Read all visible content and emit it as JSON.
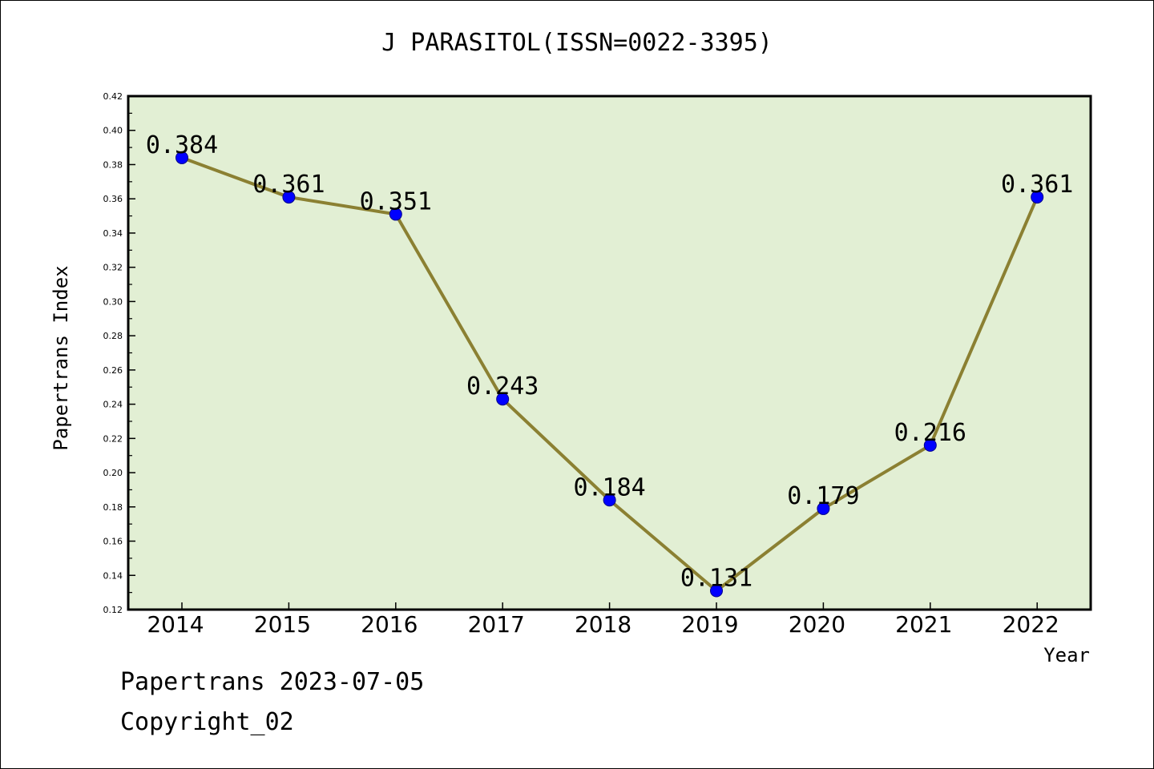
{
  "chart_data": {
    "type": "line",
    "title": "J PARASITOL(ISSN=0022-3395)",
    "xlabel": "Year",
    "ylabel": "Papertrans Index",
    "categories": [
      "2014",
      "2015",
      "2016",
      "2017",
      "2018",
      "2019",
      "2020",
      "2021",
      "2022"
    ],
    "series": [
      {
        "values": [
          0.384,
          0.361,
          0.351,
          0.243,
          0.184,
          0.131,
          0.179,
          0.216,
          0.361
        ]
      }
    ],
    "data_labels": [
      "0.384",
      "0.361",
      "0.351",
      "0.243",
      "0.184",
      "0.131",
      "0.179",
      "0.216",
      "0.361"
    ],
    "ylim": [
      0.12,
      0.42
    ],
    "yticks": [
      "0.12",
      "0.14",
      "0.16",
      "0.18",
      "0.20",
      "0.22",
      "0.24",
      "0.26",
      "0.28",
      "0.30",
      "0.32",
      "0.34",
      "0.36",
      "0.38",
      "0.40",
      "0.42"
    ],
    "grid": false,
    "legend": "none",
    "colors": {
      "plot_background": "#e2efd4",
      "line": "#8b8032",
      "marker": "#0000ff"
    }
  },
  "footer": {
    "line1": "Papertrans 2023-07-05",
    "line2": "Copyright_02"
  }
}
